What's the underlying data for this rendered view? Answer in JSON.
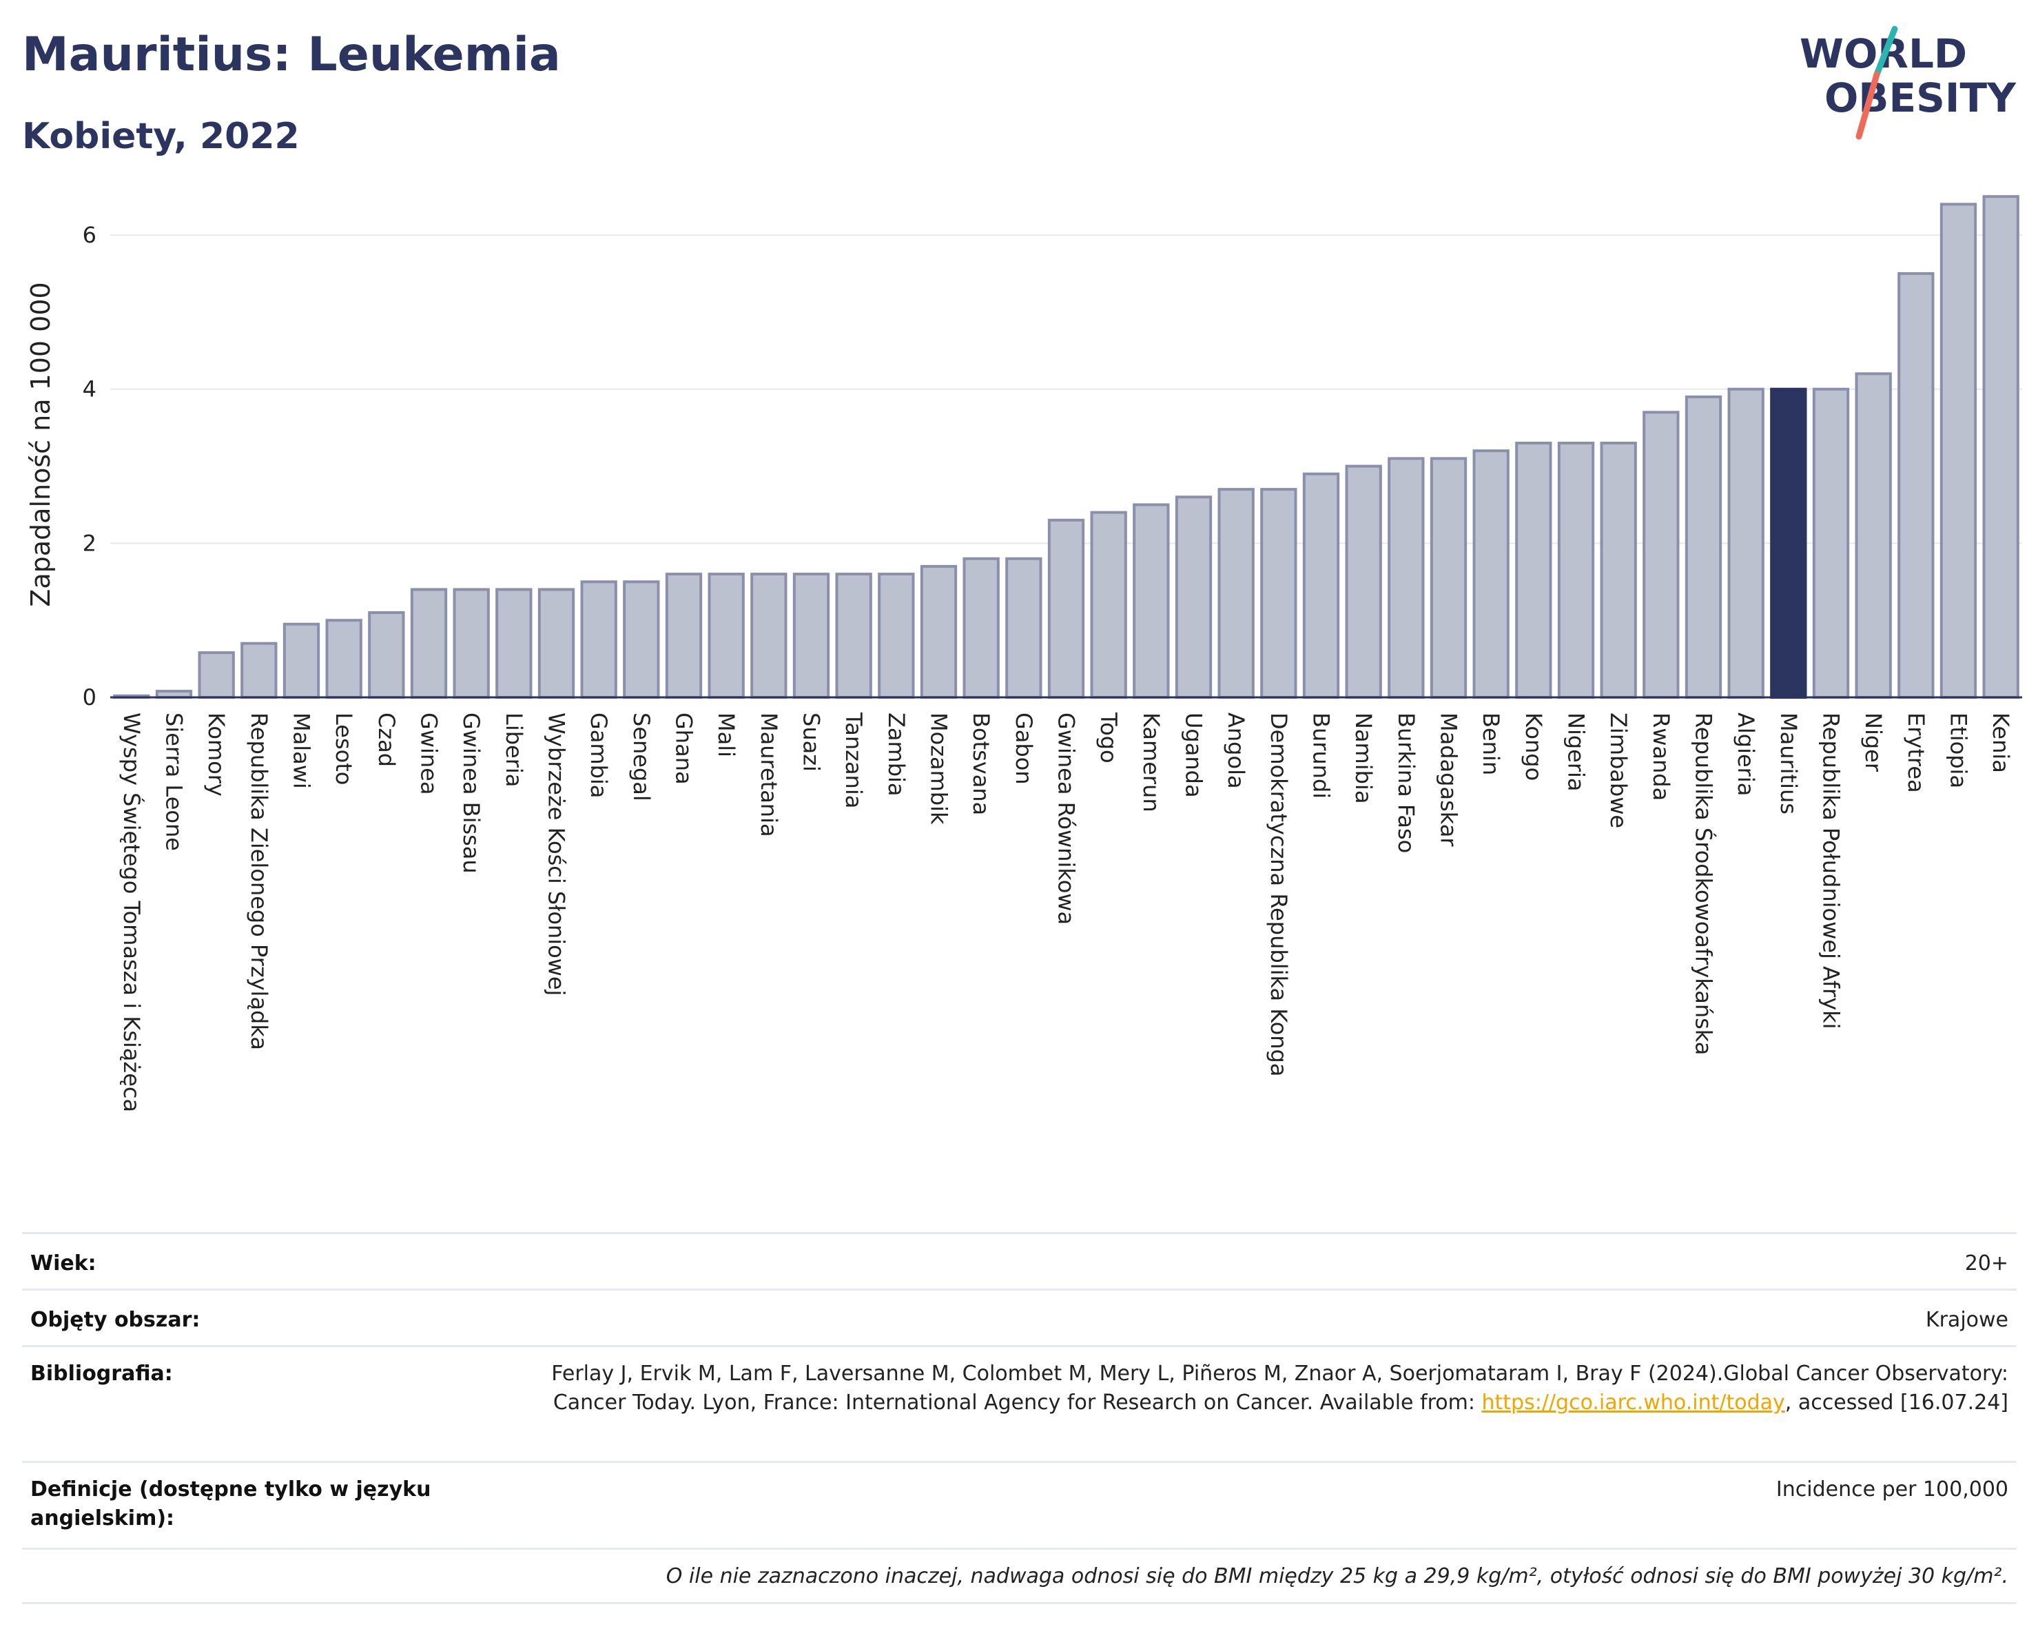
{
  "header": {
    "title": "Mauritius: Leukemia",
    "subtitle": "Kobiety, 2022",
    "logo_line1": "WORLD",
    "logo_line2": "OBESITY"
  },
  "chart_data": {
    "type": "bar",
    "title": "Mauritius: Leukemia",
    "subtitle": "Kobiety, 2022",
    "ylabel": "Zapadalność na 100 000",
    "xlabel": "",
    "ylim": [
      0,
      6.6
    ],
    "yticks": [
      0,
      2,
      4,
      6
    ],
    "grid": true,
    "highlight": "Mauritius",
    "colors": {
      "bar": "#bcc1d0",
      "bar_edge": "#8a90ab",
      "highlight": "#2b3560",
      "grid": "#e6e8ef"
    },
    "categories": [
      "Wyspy Świętego Tomasza i Książęca",
      "Sierra Leone",
      "Komory",
      "Republika Zielonego Przylądka",
      "Malawi",
      "Lesoto",
      "Czad",
      "Gwinea",
      "Gwinea Bissau",
      "Liberia",
      "Wybrzeże Kości Słoniowej",
      "Gambia",
      "Senegal",
      "Ghana",
      "Mali",
      "Mauretania",
      "Suazi",
      "Tanzania",
      "Zambia",
      "Mozambik",
      "Botsvana",
      "Gabon",
      "Gwinea Równikowa",
      "Togo",
      "Kamerun",
      "Uganda",
      "Angola",
      "Demokratyczna Republika Konga",
      "Burundi",
      "Namibia",
      "Burkina Faso",
      "Madagaskar",
      "Benin",
      "Kongo",
      "Nigeria",
      "Zimbabwe",
      "Rwanda",
      "Republika Środkowoafrykańska",
      "Algieria",
      "Mauritius",
      "Republika Południowej Afryki",
      "Niger",
      "Erytrea",
      "Etiopia",
      "Kenia"
    ],
    "values": [
      0.02,
      0.08,
      0.58,
      0.7,
      0.95,
      1.0,
      1.1,
      1.4,
      1.4,
      1.4,
      1.4,
      1.5,
      1.5,
      1.6,
      1.6,
      1.6,
      1.6,
      1.6,
      1.6,
      1.7,
      1.8,
      1.8,
      2.3,
      2.4,
      2.5,
      2.6,
      2.7,
      2.7,
      2.9,
      3.0,
      3.1,
      3.1,
      3.2,
      3.3,
      3.3,
      3.3,
      3.7,
      3.9,
      4.0,
      4.0,
      4.0,
      4.2,
      5.5,
      6.4,
      6.5
    ]
  },
  "info": {
    "age_label": "Wiek:",
    "age_value": "20+",
    "area_label": "Objęty obszar:",
    "area_value": "Krajowe",
    "bib_label": "Bibliografia:",
    "bib_text1": "Ferlay J, Ervik M, Lam F, Laversanne M, Colombet M, Mery L, Piñeros M, Znaor A, Soerjomataram I, Bray F (2024).Global Cancer Observatory: Cancer Today. Lyon, France: International Agency for Research on Cancer. Available from: ",
    "bib_link": "https://gco.iarc.who.int/today",
    "bib_text2": ", accessed [16.07.24]",
    "def_label": "Definicje (dostępne tylko w języku angielskim):",
    "def_value": "Incidence per 100,000",
    "note": "O ile nie zaznaczono inaczej, nadwaga odnosi się do BMI między 25 kg a 29,9 kg/m², otyłość odnosi się do BMI powyżej 30 kg/m²."
  }
}
